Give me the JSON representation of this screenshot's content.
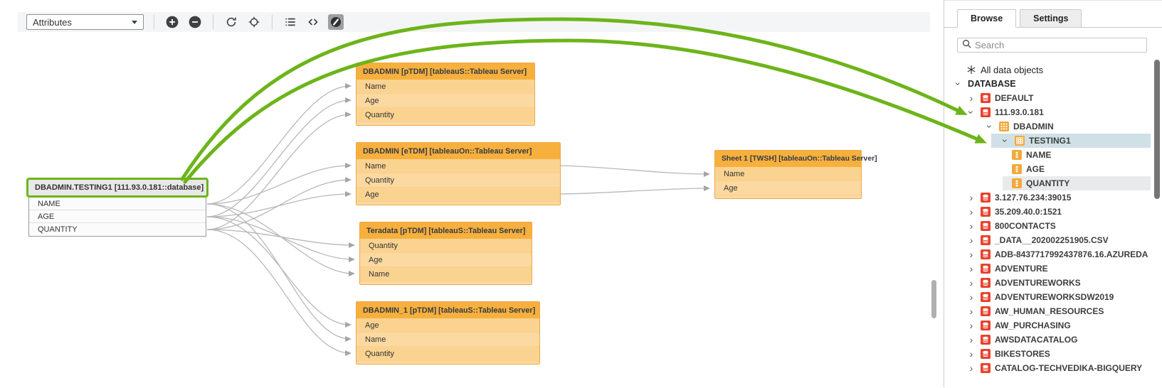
{
  "toolbar": {
    "view_selector": {
      "value": "Attributes"
    },
    "icons": [
      "plus-circle-icon",
      "minus-circle-icon",
      "refresh-icon",
      "target-icon",
      "list-icon",
      "code-icon",
      "compass-icon"
    ]
  },
  "canvas": {
    "nodes": [
      {
        "title": "DBADMIN.TESTING1 [111.93.0.181::database]",
        "fields": [
          "NAME",
          "AGE",
          "QUANTITY"
        ]
      },
      {
        "title": "DBADMIN [pTDM] [tableauS::Tableau Server]",
        "fields": [
          "Name",
          "Age",
          "Quantity"
        ]
      },
      {
        "title": "DBADMIN [eTDM] [tableauOn::Tableau Server]",
        "fields": [
          "Name",
          "Quantity",
          "Age"
        ]
      },
      {
        "title": "Teradata [pTDM] [tableauS::Tableau Server]",
        "fields": [
          "Quantity",
          "Age",
          "Name"
        ]
      },
      {
        "title": "DBADMIN_1 [pTDM] [tableauS::Tableau Server]",
        "fields": [
          "Age",
          "Name",
          "Quantity"
        ]
      },
      {
        "title": "Sheet 1 [TWSH] [tableauOn::Tableau Server]",
        "fields": [
          "Name",
          "Age"
        ]
      }
    ]
  },
  "panel": {
    "tabs": [
      {
        "label": "Browse",
        "active": true
      },
      {
        "label": "Settings",
        "active": false
      }
    ],
    "search_placeholder": "Search",
    "tree": [
      {
        "level": 1,
        "icon": "star-icon",
        "label": "All data objects",
        "kind": "all-objects"
      },
      {
        "level": 0,
        "chevron": "down",
        "label": "DATABASE",
        "kind": "category"
      },
      {
        "level": 1,
        "chevron": "right",
        "icon": "database-icon",
        "label": "DEFAULT"
      },
      {
        "level": 1,
        "chevron": "down",
        "icon": "database-icon",
        "label": "111.93.0.181"
      },
      {
        "level": 2,
        "chevron": "down",
        "icon": "schema-icon",
        "label": "DBADMIN"
      },
      {
        "level": 3,
        "chevron": "down",
        "icon": "table-icon",
        "label": "TESTING1",
        "state": "selected"
      },
      {
        "level": 4,
        "icon": "column-icon",
        "label": "NAME"
      },
      {
        "level": 4,
        "icon": "column-icon",
        "label": "AGE"
      },
      {
        "level": 4,
        "icon": "column-icon",
        "label": "QUANTITY",
        "state": "hovered"
      },
      {
        "level": 1,
        "chevron": "right",
        "icon": "database-icon",
        "label": "3.127.76.234:39015"
      },
      {
        "level": 1,
        "chevron": "right",
        "icon": "database-icon",
        "label": "35.209.40.0:1521"
      },
      {
        "level": 1,
        "chevron": "right",
        "icon": "database-icon",
        "label": "800CONTACTS"
      },
      {
        "level": 1,
        "chevron": "right",
        "icon": "database-icon",
        "label": "_DATA__202002251905.CSV"
      },
      {
        "level": 1,
        "chevron": "right",
        "icon": "database-icon",
        "label": "ADB-8437717992437876.16.AZUREDA"
      },
      {
        "level": 1,
        "chevron": "right",
        "icon": "database-icon",
        "label": "ADVENTURE"
      },
      {
        "level": 1,
        "chevron": "right",
        "icon": "database-icon",
        "label": "ADVENTUREWORKS"
      },
      {
        "level": 1,
        "chevron": "right",
        "icon": "database-icon",
        "label": "ADVENTUREWORKSDW2019"
      },
      {
        "level": 1,
        "chevron": "right",
        "icon": "database-icon",
        "label": "AW_HUMAN_RESOURCES"
      },
      {
        "level": 1,
        "chevron": "right",
        "icon": "database-icon",
        "label": "AW_PURCHASING"
      },
      {
        "level": 1,
        "chevron": "right",
        "icon": "database-icon",
        "label": "AWSDATACATALOG"
      },
      {
        "level": 1,
        "chevron": "right",
        "icon": "database-icon",
        "label": "BIKESTORES"
      },
      {
        "level": 1,
        "chevron": "right",
        "icon": "database-icon",
        "label": "CATALOG-TECHVEDIKA-BIGQUERY"
      }
    ]
  },
  "colors": {
    "accent_green": "#6db41a",
    "node_header_orange": "#f7b03d",
    "node_body_orange": "#fbd89b",
    "source_header_grey": "#e8e8e8",
    "database_icon_red": "#e8412c",
    "selected_row_blue": "#cfe1e6",
    "edge_grey": "#b8b8b8"
  }
}
